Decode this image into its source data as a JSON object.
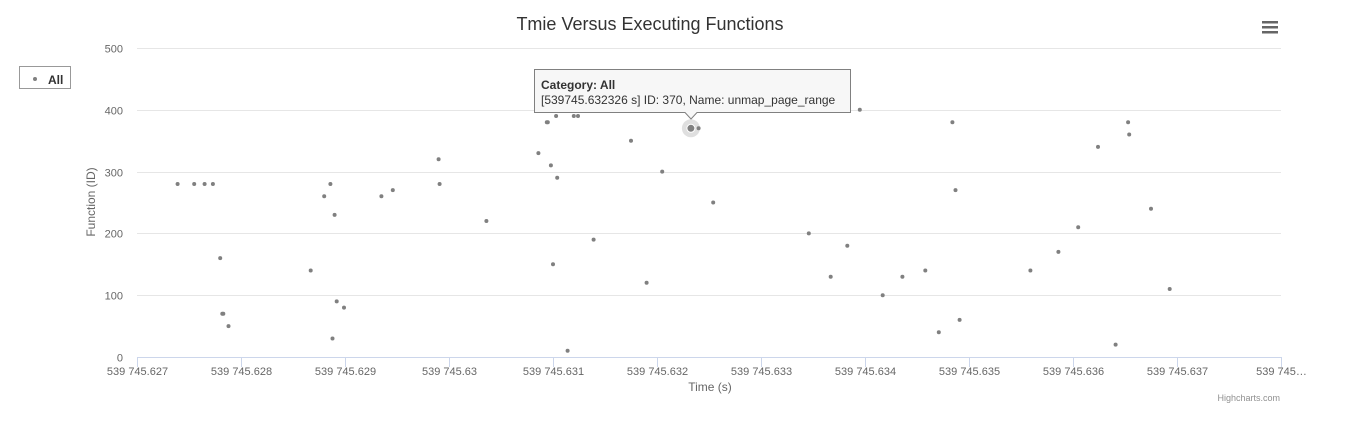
{
  "chart_data": {
    "type": "scatter",
    "title": "Tmie Versus Executing Functions",
    "xlabel": "Time (s)",
    "ylabel": "Function (ID)",
    "x_tick_labels": [
      "539 745.627",
      "539 745.628",
      "539 745.629",
      "539 745.63",
      "539 745.631",
      "539 745.632",
      "539 745.633",
      "539 745.634",
      "539 745.635",
      "539 745.636",
      "539 745.637",
      "539 745…"
    ],
    "y_tick_labels": [
      "0",
      "100",
      "200",
      "300",
      "400",
      "500"
    ],
    "xlim": [
      539745.627,
      539745.638
    ],
    "ylim": [
      0,
      500
    ],
    "grid": "horizontal",
    "legend_position": "top-left",
    "colors": {
      "marker": "#808080",
      "grid": "#e6e6e6",
      "axis": "#ccd6eb",
      "tooltip_border": "#808080"
    },
    "series": [
      {
        "name": "All",
        "x": [
          539745.62739,
          539745.62755,
          539745.62765,
          539745.62773,
          539745.6278,
          539745.62782,
          539745.62783,
          539745.62788,
          539745.62867,
          539745.6288,
          539745.62886,
          539745.62888,
          539745.6289,
          539745.62892,
          539745.62899,
          539745.62935,
          539745.62946,
          539745.6299,
          539745.62991,
          539745.63036,
          539745.63086,
          539745.63094,
          539745.63095,
          539745.63098,
          539745.631,
          539745.63103,
          539745.63104,
          539745.63114,
          539745.6312,
          539745.63124,
          539745.63139,
          539745.63175,
          539745.6319,
          539745.63205,
          539745.6324,
          539745.632326,
          539745.63254,
          539745.63346,
          539745.63367,
          539745.63383,
          539745.63395,
          539745.63417,
          539745.63436,
          539745.63458,
          539745.63471,
          539745.63484,
          539745.63487,
          539745.63491,
          539745.63559,
          539745.63586,
          539745.63605,
          539745.63624,
          539745.63641,
          539745.63653,
          539745.63654,
          539745.63675,
          539745.63693
        ],
        "y": [
          280,
          280,
          280,
          280,
          160,
          70,
          70,
          50,
          140,
          260,
          280,
          30,
          230,
          90,
          80,
          260,
          270,
          320,
          280,
          220,
          330,
          380,
          380,
          310,
          150,
          390,
          290,
          10,
          390,
          390,
          190,
          350,
          120,
          300,
          370,
          370,
          250,
          200,
          130,
          180,
          400,
          100,
          130,
          140,
          40,
          380,
          270,
          60,
          140,
          170,
          210,
          340,
          20,
          380,
          360,
          240,
          110
        ]
      }
    ],
    "highlight": {
      "x": 539745.632326,
      "y": 370
    },
    "legend": {
      "items": [
        "All"
      ]
    },
    "tooltip": {
      "title": "Category: All",
      "body": "[539745.632326 s] ID: 370, Name: unmap_page_range"
    },
    "credits": "Highcharts.com"
  },
  "icons": {
    "menu": "hamburger-menu-icon"
  }
}
